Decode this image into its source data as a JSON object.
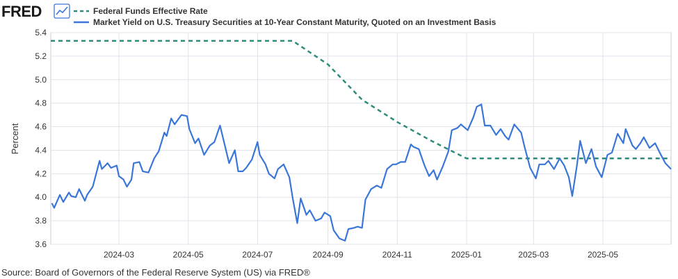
{
  "logo": {
    "text": "FRED",
    "icon": "fred-chart-icon"
  },
  "colors": {
    "fedfunds": "#2e8b7a",
    "treasury": "#3a76d8",
    "grid": "#dfe3ea",
    "plot_bg": "#ffffff",
    "frame": "#c8ced8",
    "logo_icon": "#3a76d8"
  },
  "chart_data": {
    "type": "line",
    "ylabel": "Percent",
    "ylim": [
      3.6,
      5.4
    ],
    "yticks": [
      "3.6",
      "3.8",
      "4.0",
      "4.2",
      "4.4",
      "4.6",
      "4.8",
      "5.0",
      "5.2",
      "5.4"
    ],
    "xlim": [
      "2024-01-01",
      "2025-06-30"
    ],
    "xticks": [
      {
        "label": "2024-03",
        "date": "2024-03-01"
      },
      {
        "label": "2024-05",
        "date": "2024-05-01"
      },
      {
        "label": "2024-07",
        "date": "2024-07-01"
      },
      {
        "label": "2024-09",
        "date": "2024-09-01"
      },
      {
        "label": "2024-11",
        "date": "2024-11-01"
      },
      {
        "label": "2025-01",
        "date": "2025-01-01"
      },
      {
        "label": "2025-03",
        "date": "2025-03-01"
      },
      {
        "label": "2025-05",
        "date": "2025-05-01"
      }
    ],
    "grid": true,
    "legend_position": "top-left",
    "series": [
      {
        "name": "Federal Funds Effective Rate",
        "style": "dashed",
        "points": [
          [
            "2024-01-01",
            5.33
          ],
          [
            "2024-08-01",
            5.33
          ],
          [
            "2024-09-01",
            5.13
          ],
          [
            "2024-10-01",
            4.83
          ],
          [
            "2024-11-01",
            4.64
          ],
          [
            "2024-12-01",
            4.48
          ],
          [
            "2025-01-01",
            4.33
          ],
          [
            "2025-06-30",
            4.33
          ]
        ]
      },
      {
        "name": "Market Yield on U.S. Treasury Securities at 10-Year Constant Maturity, Quoted on an Investment Basis",
        "style": "solid",
        "points": [
          [
            "2024-01-02",
            3.95
          ],
          [
            "2024-01-04",
            3.91
          ],
          [
            "2024-01-09",
            4.02
          ],
          [
            "2024-01-12",
            3.96
          ],
          [
            "2024-01-17",
            4.04
          ],
          [
            "2024-01-19",
            4.01
          ],
          [
            "2024-01-23",
            4.0
          ],
          [
            "2024-01-26",
            4.07
          ],
          [
            "2024-01-31",
            3.97
          ],
          [
            "2024-02-02",
            4.02
          ],
          [
            "2024-02-07",
            4.09
          ],
          [
            "2024-02-13",
            4.31
          ],
          [
            "2024-02-15",
            4.24
          ],
          [
            "2024-02-20",
            4.29
          ],
          [
            "2024-02-23",
            4.25
          ],
          [
            "2024-02-28",
            4.27
          ],
          [
            "2024-03-01",
            4.18
          ],
          [
            "2024-03-05",
            4.15
          ],
          [
            "2024-03-08",
            4.09
          ],
          [
            "2024-03-12",
            4.15
          ],
          [
            "2024-03-14",
            4.29
          ],
          [
            "2024-03-19",
            4.3
          ],
          [
            "2024-03-22",
            4.22
          ],
          [
            "2024-03-27",
            4.21
          ],
          [
            "2024-04-01",
            4.33
          ],
          [
            "2024-04-03",
            4.36
          ],
          [
            "2024-04-05",
            4.39
          ],
          [
            "2024-04-10",
            4.55
          ],
          [
            "2024-04-12",
            4.52
          ],
          [
            "2024-04-16",
            4.67
          ],
          [
            "2024-04-19",
            4.62
          ],
          [
            "2024-04-25",
            4.7
          ],
          [
            "2024-04-30",
            4.69
          ],
          [
            "2024-05-02",
            4.58
          ],
          [
            "2024-05-07",
            4.46
          ],
          [
            "2024-05-10",
            4.5
          ],
          [
            "2024-05-15",
            4.36
          ],
          [
            "2024-05-20",
            4.44
          ],
          [
            "2024-05-24",
            4.47
          ],
          [
            "2024-05-29",
            4.61
          ],
          [
            "2024-06-03",
            4.41
          ],
          [
            "2024-06-06",
            4.29
          ],
          [
            "2024-06-11",
            4.4
          ],
          [
            "2024-06-14",
            4.22
          ],
          [
            "2024-06-18",
            4.22
          ],
          [
            "2024-06-21",
            4.25
          ],
          [
            "2024-06-26",
            4.32
          ],
          [
            "2024-07-01",
            4.47
          ],
          [
            "2024-07-03",
            4.36
          ],
          [
            "2024-07-08",
            4.28
          ],
          [
            "2024-07-11",
            4.2
          ],
          [
            "2024-07-16",
            4.16
          ],
          [
            "2024-07-19",
            4.24
          ],
          [
            "2024-07-24",
            4.28
          ],
          [
            "2024-07-29",
            4.17
          ],
          [
            "2024-08-01",
            3.99
          ],
          [
            "2024-08-05",
            3.78
          ],
          [
            "2024-08-08",
            3.99
          ],
          [
            "2024-08-13",
            3.85
          ],
          [
            "2024-08-16",
            3.89
          ],
          [
            "2024-08-21",
            3.8
          ],
          [
            "2024-08-26",
            3.82
          ],
          [
            "2024-08-29",
            3.87
          ],
          [
            "2024-09-03",
            3.84
          ],
          [
            "2024-09-06",
            3.72
          ],
          [
            "2024-09-11",
            3.65
          ],
          [
            "2024-09-16",
            3.63
          ],
          [
            "2024-09-19",
            3.73
          ],
          [
            "2024-09-24",
            3.74
          ],
          [
            "2024-09-27",
            3.75
          ],
          [
            "2024-10-01",
            3.74
          ],
          [
            "2024-10-04",
            3.98
          ],
          [
            "2024-10-09",
            4.07
          ],
          [
            "2024-10-14",
            4.1
          ],
          [
            "2024-10-18",
            4.08
          ],
          [
            "2024-10-23",
            4.24
          ],
          [
            "2024-10-28",
            4.28
          ],
          [
            "2024-10-31",
            4.28
          ],
          [
            "2024-11-04",
            4.3
          ],
          [
            "2024-11-08",
            4.3
          ],
          [
            "2024-11-13",
            4.45
          ],
          [
            "2024-11-15",
            4.43
          ],
          [
            "2024-11-20",
            4.41
          ],
          [
            "2024-11-25",
            4.27
          ],
          [
            "2024-11-29",
            4.18
          ],
          [
            "2024-12-03",
            4.23
          ],
          [
            "2024-12-06",
            4.15
          ],
          [
            "2024-12-11",
            4.26
          ],
          [
            "2024-12-16",
            4.39
          ],
          [
            "2024-12-19",
            4.57
          ],
          [
            "2024-12-24",
            4.59
          ],
          [
            "2024-12-27",
            4.62
          ],
          [
            "2025-01-02",
            4.57
          ],
          [
            "2025-01-07",
            4.68
          ],
          [
            "2025-01-10",
            4.77
          ],
          [
            "2025-01-14",
            4.79
          ],
          [
            "2025-01-17",
            4.61
          ],
          [
            "2025-01-22",
            4.61
          ],
          [
            "2025-01-27",
            4.53
          ],
          [
            "2025-01-31",
            4.58
          ],
          [
            "2025-02-04",
            4.52
          ],
          [
            "2025-02-07",
            4.49
          ],
          [
            "2025-02-12",
            4.62
          ],
          [
            "2025-02-18",
            4.55
          ],
          [
            "2025-02-21",
            4.43
          ],
          [
            "2025-02-26",
            4.25
          ],
          [
            "2025-03-03",
            4.16
          ],
          [
            "2025-03-06",
            4.28
          ],
          [
            "2025-03-11",
            4.28
          ],
          [
            "2025-03-14",
            4.31
          ],
          [
            "2025-03-19",
            4.24
          ],
          [
            "2025-03-24",
            4.33
          ],
          [
            "2025-03-28",
            4.27
          ],
          [
            "2025-04-01",
            4.17
          ],
          [
            "2025-04-04",
            4.01
          ],
          [
            "2025-04-08",
            4.26
          ],
          [
            "2025-04-11",
            4.48
          ],
          [
            "2025-04-16",
            4.29
          ],
          [
            "2025-04-21",
            4.41
          ],
          [
            "2025-04-25",
            4.26
          ],
          [
            "2025-04-30",
            4.17
          ],
          [
            "2025-05-05",
            4.36
          ],
          [
            "2025-05-09",
            4.38
          ],
          [
            "2025-05-14",
            4.54
          ],
          [
            "2025-05-19",
            4.46
          ],
          [
            "2025-05-21",
            4.58
          ],
          [
            "2025-05-27",
            4.44
          ],
          [
            "2025-05-30",
            4.41
          ],
          [
            "2025-06-03",
            4.46
          ],
          [
            "2025-06-06",
            4.51
          ],
          [
            "2025-06-11",
            4.42
          ],
          [
            "2025-06-16",
            4.46
          ],
          [
            "2025-06-20",
            4.38
          ],
          [
            "2025-06-25",
            4.29
          ],
          [
            "2025-06-30",
            4.24
          ]
        ]
      }
    ]
  },
  "source": "Source: Board of Governors of the Federal Reserve System (US) via FRED®"
}
